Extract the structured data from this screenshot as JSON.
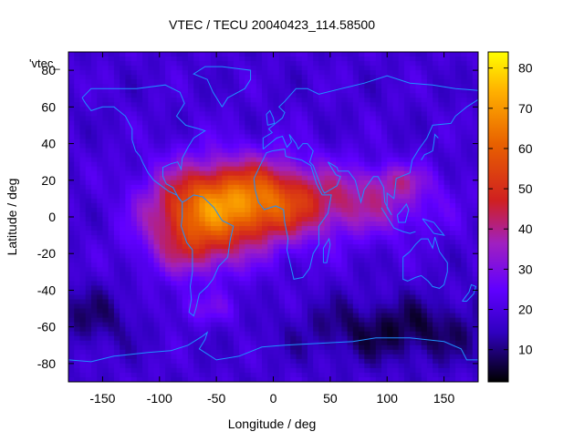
{
  "chart_data": {
    "type": "heatmap",
    "title": "VTEC / TECU 20040423_114.58500",
    "xlabel": "Longitude / deg",
    "ylabel": "Latitude / deg",
    "key_label": "'vtec_",
    "xlim": [
      -180,
      180
    ],
    "ylim": [
      -90,
      90
    ],
    "x_ticks": [
      -150,
      -100,
      -50,
      0,
      50,
      100,
      150
    ],
    "y_ticks": [
      -80,
      -60,
      -40,
      -20,
      0,
      20,
      40,
      60,
      80
    ],
    "colorbar": {
      "range": [
        2,
        84
      ],
      "ticks": [
        10,
        20,
        30,
        40,
        50,
        60,
        70,
        80
      ]
    },
    "grid": false,
    "palette": "black-blue-purple-red-orange-yellow",
    "cell_size_deg": [
      5,
      2.5
    ],
    "background_vtec": 18,
    "features": [
      {
        "lon": -20,
        "lat": 8,
        "sx": 42,
        "sy": 16,
        "amp": 45
      },
      {
        "lon": -75,
        "lat": 0,
        "sx": 30,
        "sy": 18,
        "amp": 25
      },
      {
        "lon": -65,
        "lat": -20,
        "sx": 28,
        "sy": 10,
        "amp": 10
      },
      {
        "lon": 80,
        "lat": 8,
        "sx": 45,
        "sy": 13,
        "amp": 18
      },
      {
        "lon": 110,
        "lat": 20,
        "sx": 20,
        "sy": 6,
        "amp": 10
      },
      {
        "lon": -60,
        "lat": -50,
        "sx": 25,
        "sy": 6,
        "amp": 8
      },
      {
        "lon": 110,
        "lat": -62,
        "sx": 60,
        "sy": 12,
        "amp": -12
      },
      {
        "lon": -160,
        "lat": -55,
        "sx": 30,
        "sy": 12,
        "amp": -8
      }
    ],
    "coastlines": [
      {
        "name": "north-america",
        "points": [
          [
            -168,
            65
          ],
          [
            -160,
            70
          ],
          [
            -140,
            70
          ],
          [
            -120,
            70
          ],
          [
            -95,
            72
          ],
          [
            -82,
            68
          ],
          [
            -78,
            62
          ],
          [
            -85,
            55
          ],
          [
            -77,
            50
          ],
          [
            -65,
            48
          ],
          [
            -60,
            47
          ],
          [
            -70,
            43
          ],
          [
            -75,
            38
          ],
          [
            -80,
            32
          ],
          [
            -81,
            26
          ],
          [
            -84,
            30
          ],
          [
            -90,
            29
          ],
          [
            -97,
            27
          ],
          [
            -97,
            22
          ],
          [
            -94,
            18
          ],
          [
            -88,
            16
          ],
          [
            -83,
            10
          ],
          [
            -80,
            8
          ],
          [
            -85,
            12
          ],
          [
            -92,
            14
          ],
          [
            -105,
            20
          ],
          [
            -110,
            24
          ],
          [
            -115,
            30
          ],
          [
            -117,
            33
          ],
          [
            -121,
            36
          ],
          [
            -124,
            42
          ],
          [
            -124,
            48
          ],
          [
            -130,
            55
          ],
          [
            -140,
            60
          ],
          [
            -150,
            60
          ],
          [
            -160,
            58
          ],
          [
            -165,
            62
          ],
          [
            -168,
            65
          ]
        ]
      },
      {
        "name": "greenland",
        "points": [
          [
            -45,
            60
          ],
          [
            -40,
            65
          ],
          [
            -25,
            70
          ],
          [
            -20,
            75
          ],
          [
            -20,
            80
          ],
          [
            -45,
            82
          ],
          [
            -60,
            82
          ],
          [
            -70,
            78
          ],
          [
            -58,
            75
          ],
          [
            -53,
            68
          ],
          [
            -45,
            60
          ]
        ]
      },
      {
        "name": "south-america",
        "points": [
          [
            -80,
            8
          ],
          [
            -77,
            9
          ],
          [
            -70,
            12
          ],
          [
            -62,
            11
          ],
          [
            -52,
            5
          ],
          [
            -45,
            -2
          ],
          [
            -35,
            -5
          ],
          [
            -38,
            -13
          ],
          [
            -40,
            -22
          ],
          [
            -48,
            -27
          ],
          [
            -53,
            -34
          ],
          [
            -58,
            -38
          ],
          [
            -65,
            -42
          ],
          [
            -68,
            -50
          ],
          [
            -70,
            -54
          ],
          [
            -74,
            -52
          ],
          [
            -72,
            -45
          ],
          [
            -73,
            -38
          ],
          [
            -71,
            -30
          ],
          [
            -71,
            -18
          ],
          [
            -76,
            -14
          ],
          [
            -81,
            -5
          ],
          [
            -80,
            0
          ],
          [
            -80,
            8
          ]
        ]
      },
      {
        "name": "africa",
        "points": [
          [
            -17,
            21
          ],
          [
            -16,
            15
          ],
          [
            -13,
            8
          ],
          [
            -8,
            4
          ],
          [
            2,
            6
          ],
          [
            9,
            4
          ],
          [
            10,
            -3
          ],
          [
            13,
            -12
          ],
          [
            12,
            -18
          ],
          [
            18,
            -34
          ],
          [
            26,
            -33
          ],
          [
            32,
            -28
          ],
          [
            35,
            -20
          ],
          [
            40,
            -15
          ],
          [
            40,
            -5
          ],
          [
            48,
            2
          ],
          [
            51,
            12
          ],
          [
            43,
            12
          ],
          [
            38,
            18
          ],
          [
            33,
            28
          ],
          [
            25,
            31
          ],
          [
            11,
            33
          ],
          [
            10,
            37
          ],
          [
            -1,
            36
          ],
          [
            -6,
            35
          ],
          [
            -10,
            30
          ],
          [
            -17,
            21
          ]
        ]
      },
      {
        "name": "eurasia",
        "points": [
          [
            -9,
            37
          ],
          [
            -9,
            43
          ],
          [
            -1,
            46
          ],
          [
            -4,
            48
          ],
          [
            2,
            51
          ],
          [
            8,
            54
          ],
          [
            10,
            57
          ],
          [
            5,
            60
          ],
          [
            10,
            63
          ],
          [
            20,
            70
          ],
          [
            30,
            70
          ],
          [
            40,
            67
          ],
          [
            60,
            70
          ],
          [
            80,
            73
          ],
          [
            100,
            77
          ],
          [
            120,
            73
          ],
          [
            140,
            72
          ],
          [
            160,
            70
          ],
          [
            180,
            69
          ]
        ]
      },
      {
        "name": "asia-south",
        "points": [
          [
            180,
            64
          ],
          [
            170,
            60
          ],
          [
            160,
            55
          ],
          [
            156,
            51
          ],
          [
            140,
            50
          ],
          [
            135,
            43
          ],
          [
            128,
            37
          ],
          [
            122,
            31
          ],
          [
            120,
            24
          ],
          [
            108,
            21
          ],
          [
            106,
            10
          ],
          [
            100,
            13
          ],
          [
            100,
            5
          ],
          [
            104,
            1
          ],
          [
            98,
            8
          ],
          [
            97,
            16
          ],
          [
            92,
            22
          ],
          [
            88,
            22
          ],
          [
            80,
            15
          ],
          [
            77,
            8
          ],
          [
            72,
            20
          ],
          [
            66,
            25
          ],
          [
            57,
            25
          ],
          [
            56,
            27
          ],
          [
            48,
            30
          ],
          [
            55,
            23
          ],
          [
            59,
            22
          ],
          [
            56,
            17
          ],
          [
            45,
            13
          ],
          [
            43,
            15
          ],
          [
            35,
            28
          ],
          [
            32,
            30
          ],
          [
            35,
            36
          ],
          [
            30,
            40
          ],
          [
            26,
            40
          ],
          [
            22,
            37
          ],
          [
            20,
            40
          ],
          [
            14,
            45
          ],
          [
            16,
            41
          ],
          [
            12,
            38
          ],
          [
            8,
            44
          ],
          [
            3,
            43
          ],
          [
            -9,
            37
          ]
        ]
      },
      {
        "name": "australia",
        "points": [
          [
            114,
            -22
          ],
          [
            114,
            -34
          ],
          [
            118,
            -35
          ],
          [
            125,
            -33
          ],
          [
            130,
            -32
          ],
          [
            136,
            -35
          ],
          [
            140,
            -38
          ],
          [
            146,
            -39
          ],
          [
            150,
            -37
          ],
          [
            153,
            -30
          ],
          [
            153,
            -25
          ],
          [
            146,
            -19
          ],
          [
            142,
            -11
          ],
          [
            140,
            -17
          ],
          [
            136,
            -12
          ],
          [
            130,
            -12
          ],
          [
            125,
            -15
          ],
          [
            120,
            -19
          ],
          [
            114,
            -22
          ]
        ]
      },
      {
        "name": "antarctica",
        "points": [
          [
            -180,
            -78
          ],
          [
            -160,
            -79
          ],
          [
            -140,
            -76
          ],
          [
            -110,
            -74
          ],
          [
            -90,
            -73
          ],
          [
            -75,
            -70
          ],
          [
            -62,
            -65
          ],
          [
            -58,
            -63
          ],
          [
            -60,
            -67
          ],
          [
            -65,
            -72
          ],
          [
            -50,
            -78
          ],
          [
            -30,
            -76
          ],
          [
            -10,
            -71
          ],
          [
            10,
            -70
          ],
          [
            40,
            -69
          ],
          [
            70,
            -68
          ],
          [
            90,
            -66
          ],
          [
            120,
            -66
          ],
          [
            150,
            -68
          ],
          [
            165,
            -72
          ],
          [
            170,
            -78
          ],
          [
            180,
            -78
          ]
        ]
      },
      {
        "name": "indonesia",
        "points": [
          [
            95,
            5
          ],
          [
            100,
            0
          ],
          [
            106,
            -6
          ],
          [
            114,
            -8
          ],
          [
            120,
            -9
          ],
          [
            125,
            -8
          ]
        ]
      },
      {
        "name": "borneo",
        "points": [
          [
            109,
            1
          ],
          [
            112,
            3
          ],
          [
            117,
            7
          ],
          [
            119,
            4
          ],
          [
            116,
            -3
          ],
          [
            110,
            -3
          ],
          [
            109,
            1
          ]
        ]
      },
      {
        "name": "japan",
        "points": [
          [
            130,
            31
          ],
          [
            133,
            34
          ],
          [
            137,
            35
          ],
          [
            140,
            36
          ],
          [
            141,
            40
          ],
          [
            142,
            45
          ],
          [
            145,
            43
          ]
        ]
      },
      {
        "name": "madagascar",
        "points": [
          [
            44,
            -25
          ],
          [
            47,
            -25
          ],
          [
            50,
            -15
          ],
          [
            49,
            -12
          ],
          [
            44,
            -17
          ],
          [
            44,
            -25
          ]
        ]
      },
      {
        "name": "uk",
        "points": [
          [
            -5,
            50
          ],
          [
            1,
            51
          ],
          [
            0,
            54
          ],
          [
            -3,
            58
          ],
          [
            -6,
            56
          ],
          [
            -5,
            50
          ]
        ]
      },
      {
        "name": "new-zealand",
        "points": [
          [
            166,
            -46
          ],
          [
            172,
            -41
          ],
          [
            174,
            -37
          ],
          [
            178,
            -38
          ],
          [
            176,
            -42
          ],
          [
            170,
            -46
          ],
          [
            166,
            -46
          ]
        ]
      },
      {
        "name": "new-guinea",
        "points": [
          [
            131,
            -1
          ],
          [
            141,
            -3
          ],
          [
            150,
            -10
          ],
          [
            141,
            -9
          ],
          [
            131,
            -1
          ]
        ]
      }
    ]
  }
}
